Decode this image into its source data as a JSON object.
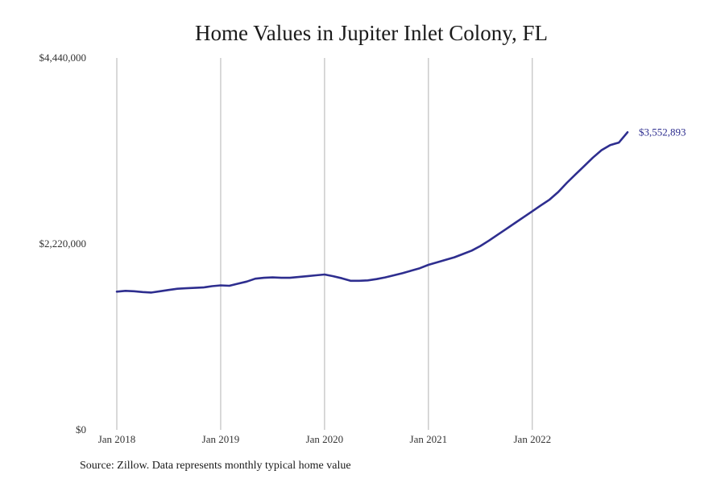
{
  "chart_data": {
    "type": "line",
    "title": "Home Values in Jupiter Inlet Colony, FL",
    "source": "Source: Zillow. Data represents monthly typical home value",
    "xlabel": "",
    "ylabel": "",
    "ylim": [
      0,
      4440000
    ],
    "y_ticks": [
      {
        "value": 0,
        "label": "$0"
      },
      {
        "value": 2220000,
        "label": "$2,220,000"
      },
      {
        "value": 4440000,
        "label": "$4,440,000"
      }
    ],
    "x_ticks": [
      {
        "value": 0,
        "label": "Jan 2018"
      },
      {
        "value": 12,
        "label": "Jan 2019"
      },
      {
        "value": 24,
        "label": "Jan 2020"
      },
      {
        "value": 36,
        "label": "Jan 2021"
      },
      {
        "value": 48,
        "label": "Jan 2022"
      }
    ],
    "xlim": [
      0,
      59
    ],
    "grid": "vertical",
    "line_color": "#2e2e8f",
    "end_label": "$3,552,893",
    "series": [
      {
        "x": [
          0,
          1,
          2,
          3,
          4,
          5,
          6,
          7,
          8,
          9,
          10,
          11,
          12,
          13,
          14,
          15,
          16,
          17,
          18,
          19,
          20,
          21,
          22,
          23,
          24,
          25,
          26,
          27,
          28,
          29,
          30,
          31,
          32,
          33,
          34,
          35,
          36,
          37,
          38,
          39,
          40,
          41,
          42,
          43,
          44,
          45,
          46,
          47,
          48,
          49,
          50,
          51,
          52,
          53,
          54,
          55,
          56,
          57,
          58,
          59
        ],
        "values": [
          1650000,
          1660000,
          1655000,
          1645000,
          1640000,
          1655000,
          1670000,
          1685000,
          1690000,
          1695000,
          1700000,
          1715000,
          1725000,
          1720000,
          1745000,
          1770000,
          1805000,
          1815000,
          1820000,
          1815000,
          1815000,
          1825000,
          1835000,
          1845000,
          1855000,
          1835000,
          1810000,
          1780000,
          1780000,
          1785000,
          1800000,
          1820000,
          1845000,
          1870000,
          1900000,
          1930000,
          1970000,
          2000000,
          2030000,
          2060000,
          2100000,
          2140000,
          2195000,
          2260000,
          2330000,
          2400000,
          2470000,
          2540000,
          2610000,
          2680000,
          2750000,
          2840000,
          2950000,
          3050000,
          3150000,
          3250000,
          3340000,
          3400000,
          3430000,
          3552893
        ]
      }
    ]
  }
}
